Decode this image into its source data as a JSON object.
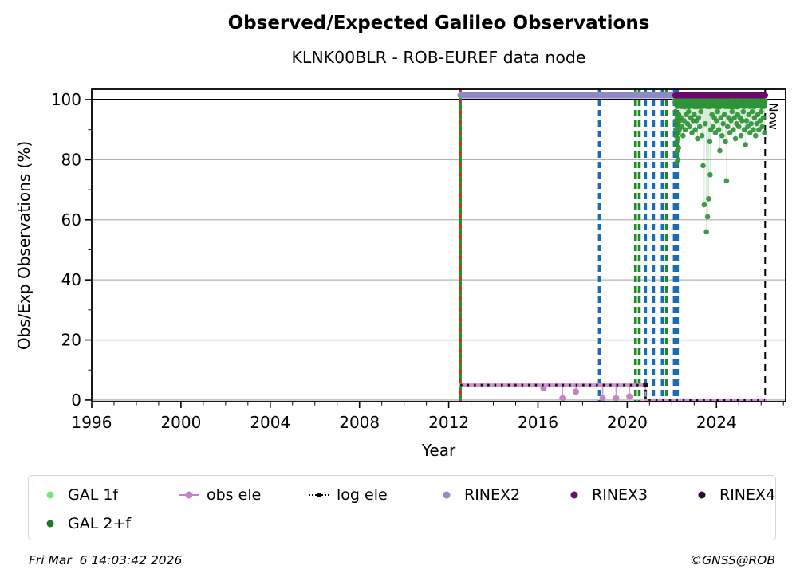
{
  "footer": {
    "timestamp": "Fri Mar  6 14:03:42 2026",
    "copyright": "©GNSS@ROB"
  },
  "legend": {
    "items": [
      {
        "label": "GAL 1f",
        "marker": "dot",
        "color": "#77e877"
      },
      {
        "label": "obs ele",
        "marker": "line-dot",
        "color": "#c583c5"
      },
      {
        "label": "log ele",
        "marker": "dotted-dot",
        "color": "#000000"
      },
      {
        "label": "RINEX2",
        "marker": "dot",
        "color": "#938ec9"
      },
      {
        "label": "RINEX3",
        "marker": "dot",
        "color": "#6b0f6b"
      },
      {
        "label": "RINEX4",
        "marker": "dot",
        "color": "#2b0b33"
      },
      {
        "label": "GAL 2+f",
        "marker": "dot",
        "color": "#1d7a24"
      }
    ]
  },
  "chart_data": {
    "type": "scatter",
    "title": "Observed/Expected Galileo Observations",
    "subtitle": "KLNK00BLR - ROB-EUREF data node",
    "xlabel": "Year",
    "ylabel": "Obs/Exp Observations (%)",
    "xlim": [
      1996.0,
      2027.1
    ],
    "ylim": [
      -0.55,
      103.45
    ],
    "x_major_ticks": [
      1996,
      2000,
      2004,
      2008,
      2012,
      2016,
      2020,
      2024
    ],
    "x_minor_step": 1,
    "y_major_ticks": [
      0,
      20,
      40,
      60,
      80,
      100
    ],
    "y_minor_ticks": [
      10,
      30,
      50,
      70,
      90
    ],
    "grid_on": true,
    "grid_color": "#b4b4b4",
    "reference_line_100": {
      "y": 100,
      "color": "#000000"
    },
    "now_line": {
      "x": 2026.18,
      "label": "Now",
      "color": "#000000",
      "style": "dashed"
    },
    "event_lines": [
      {
        "x": 2012.52,
        "color": "#169421",
        "style": "solid",
        "overlay": {
          "color": "#e02525",
          "style": "dashed"
        }
      },
      {
        "x": 2018.75,
        "color": "#1c6cb5",
        "style": "dashed"
      },
      {
        "x": 2020.37,
        "color": "#1e8c24",
        "style": "dashed"
      },
      {
        "x": 2020.54,
        "color": "#1e8c24",
        "style": "dashed"
      },
      {
        "x": 2020.82,
        "color": "#1c6cb5",
        "style": "dashed"
      },
      {
        "x": 2021.18,
        "color": "#1c6cb5",
        "style": "dashed"
      },
      {
        "x": 2021.57,
        "color": "#1c6cb5",
        "style": "dashed"
      },
      {
        "x": 2021.76,
        "color": "#1e8c24",
        "style": "dashed"
      },
      {
        "x": 2022.11,
        "color": "#1c6cb5",
        "style": "dashed"
      },
      {
        "x": 2022.25,
        "color": "#1c6cb5",
        "style": "dashed"
      }
    ],
    "rinex_bars": [
      {
        "name": "RINEX2",
        "y": 101.4,
        "x_start": 2012.52,
        "x_end": 2022.12,
        "color": "#8d89c6"
      },
      {
        "name": "RINEX3",
        "y": 101.4,
        "x_start": 2022.15,
        "x_end": 2026.18,
        "color": "#6b096b"
      }
    ],
    "obs_ele": {
      "name": "obs ele",
      "color": "#cf93cf",
      "marker_color": "#c583c5",
      "level1": {
        "y": 5,
        "x_start": 2012.52,
        "x_end": 2020.82
      },
      "dips": [
        [
          2016.25,
          4.0
        ],
        [
          2017.1,
          0.6
        ],
        [
          2017.7,
          2.8
        ],
        [
          2018.9,
          0.6
        ],
        [
          2019.5,
          0.6
        ],
        [
          2020.1,
          1.2
        ]
      ],
      "level2": {
        "y": 0,
        "x_start": 2020.82,
        "x_end": 2026.17
      }
    },
    "log_ele": {
      "name": "log ele",
      "color": "#111111",
      "path": [
        [
          2012.52,
          5
        ],
        [
          2020.82,
          5
        ],
        [
          2020.82,
          0
        ],
        [
          2026.17,
          0
        ]
      ]
    },
    "series": [
      {
        "name": "GAL 1f",
        "color": "#77e877",
        "band": {
          "x_start": 2022.15,
          "x_end": 2026.17,
          "y_min": 99.4,
          "y_max": 100.1,
          "step": 0.03,
          "seed": 7
        },
        "points": []
      },
      {
        "name": "GAL 2+f",
        "color": "#2e9437",
        "band": {
          "x_start": 2022.15,
          "x_end": 2026.17,
          "y_min": 97.6,
          "y_max": 100.1,
          "step": 0.012,
          "seed": 42
        },
        "points": [
          [
            2022.16,
            96
          ],
          [
            2022.17,
            93
          ],
          [
            2022.18,
            90
          ],
          [
            2022.18,
            85
          ],
          [
            2022.19,
            88
          ],
          [
            2022.2,
            82
          ],
          [
            2022.2,
            95
          ],
          [
            2022.21,
            79
          ],
          [
            2022.22,
            86
          ],
          [
            2022.23,
            91
          ],
          [
            2022.24,
            83
          ],
          [
            2022.25,
            94
          ],
          [
            2022.26,
            87
          ],
          [
            2022.27,
            80
          ],
          [
            2022.28,
            92
          ],
          [
            2022.29,
            89
          ],
          [
            2022.3,
            84
          ],
          [
            2022.31,
            95
          ],
          [
            2022.33,
            90
          ],
          [
            2022.35,
            93
          ],
          [
            2022.4,
            94
          ],
          [
            2022.45,
            91
          ],
          [
            2022.5,
            88
          ],
          [
            2022.55,
            93
          ],
          [
            2022.6,
            90
          ],
          [
            2022.65,
            95
          ],
          [
            2022.7,
            92
          ],
          [
            2022.75,
            96
          ],
          [
            2022.8,
            91
          ],
          [
            2022.85,
            94
          ],
          [
            2022.9,
            89
          ],
          [
            2022.95,
            93
          ],
          [
            2023.0,
            95
          ],
          [
            2023.05,
            90
          ],
          [
            2023.1,
            93
          ],
          [
            2023.15,
            87
          ],
          [
            2023.2,
            94
          ],
          [
            2023.25,
            91
          ],
          [
            2023.3,
            96
          ],
          [
            2023.35,
            88
          ],
          [
            2023.4,
            78
          ],
          [
            2023.45,
            65
          ],
          [
            2023.5,
            92
          ],
          [
            2023.55,
            56
          ],
          [
            2023.6,
            61
          ],
          [
            2023.65,
            67
          ],
          [
            2023.7,
            86
          ],
          [
            2023.72,
            75
          ],
          [
            2023.75,
            90
          ],
          [
            2023.8,
            95
          ],
          [
            2023.85,
            91
          ],
          [
            2023.9,
            94
          ],
          [
            2023.95,
            89
          ],
          [
            2024.0,
            93
          ],
          [
            2024.05,
            96
          ],
          [
            2024.1,
            90
          ],
          [
            2024.15,
            83
          ],
          [
            2024.2,
            94
          ],
          [
            2024.25,
            88
          ],
          [
            2024.3,
            92
          ],
          [
            2024.35,
            95
          ],
          [
            2024.4,
            86
          ],
          [
            2024.45,
            73
          ],
          [
            2024.5,
            91
          ],
          [
            2024.55,
            94
          ],
          [
            2024.6,
            89
          ],
          [
            2024.65,
            93
          ],
          [
            2024.7,
            96
          ],
          [
            2024.75,
            90
          ],
          [
            2024.8,
            94
          ],
          [
            2024.85,
            87
          ],
          [
            2024.9,
            92
          ],
          [
            2024.95,
            95
          ],
          [
            2025.0,
            91
          ],
          [
            2025.05,
            94
          ],
          [
            2025.1,
            88
          ],
          [
            2025.15,
            93
          ],
          [
            2025.2,
            96
          ],
          [
            2025.25,
            90
          ],
          [
            2025.3,
            85
          ],
          [
            2025.35,
            93
          ],
          [
            2025.4,
            91
          ],
          [
            2025.45,
            95
          ],
          [
            2025.5,
            89
          ],
          [
            2025.55,
            92
          ],
          [
            2025.6,
            96
          ],
          [
            2025.65,
            90
          ],
          [
            2025.7,
            94
          ],
          [
            2025.75,
            88
          ],
          [
            2025.8,
            92
          ],
          [
            2025.85,
            95
          ],
          [
            2025.9,
            90
          ],
          [
            2025.95,
            93
          ],
          [
            2026.0,
            96
          ],
          [
            2026.05,
            91
          ],
          [
            2026.1,
            94
          ],
          [
            2026.15,
            89
          ]
        ]
      }
    ]
  }
}
